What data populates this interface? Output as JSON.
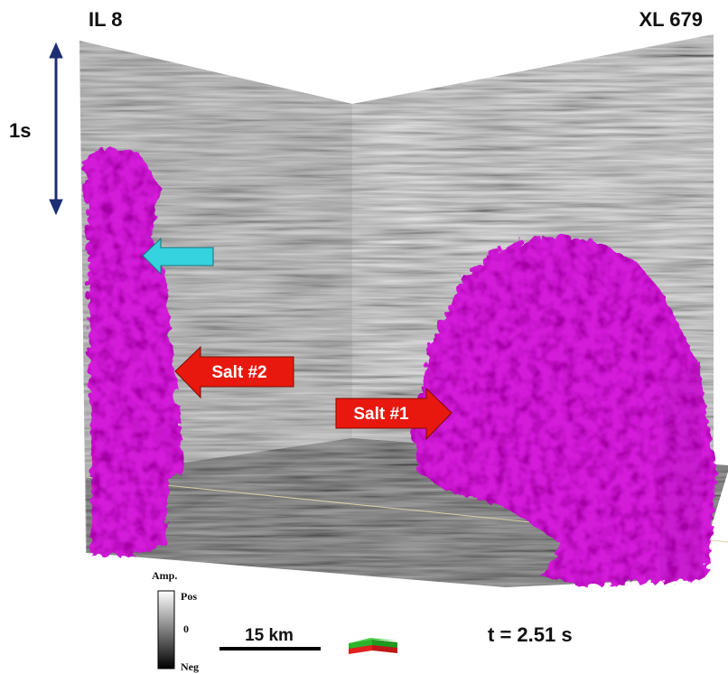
{
  "labels": {
    "inline": "IL 8",
    "crossline": "XL 679",
    "time_scale": "1s",
    "time_slice": "t = 2.51 s",
    "scale_bar": "15 km"
  },
  "annotations": [
    {
      "label": "Salt #2"
    },
    {
      "label": "Salt #1"
    }
  ],
  "colorbar": {
    "title": "Amp.",
    "ticks": [
      "Pos",
      "0",
      "Neg"
    ]
  }
}
